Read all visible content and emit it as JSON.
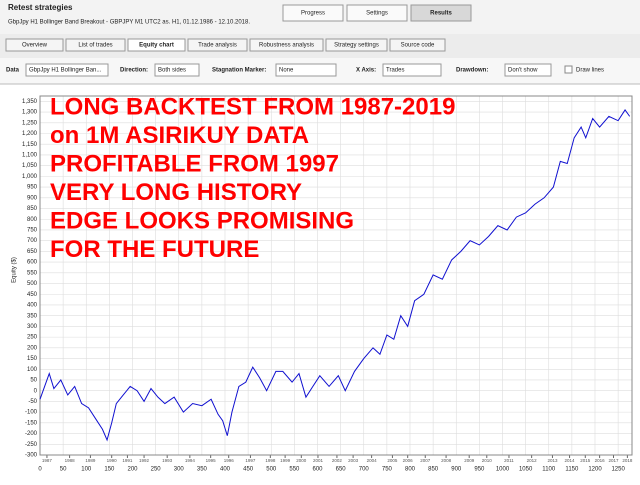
{
  "window": {
    "title": "Retest strategies",
    "subtitle": "GbpJpy H1 Bollinger Band Breakout - GBPJPY  M1  UTC2  as. H1, 01.12.1986 - 12.10.2018.",
    "buttons": [
      "Progress",
      "Settings",
      "Results"
    ],
    "tabs": [
      "Overview",
      "List of trades",
      "Equity chart",
      "Trade analysis",
      "Robustness analysis",
      "Strategy settings",
      "Source code"
    ],
    "controls": [
      {
        "label": "Data",
        "value": "GbpJpy H1 Bollinger Ban..."
      },
      {
        "label": "Direction:",
        "value": "Both sides"
      },
      {
        "label": "Stagnation Marker:",
        "value": "None"
      },
      {
        "label": "X Axis:",
        "value": "Trades"
      },
      {
        "label": "Drawdown:",
        "value": "Don't show"
      }
    ],
    "checkbox": "Draw lines"
  },
  "chart_data": {
    "type": "line",
    "ylabel": "Equity ($)",
    "color": "#1010d0",
    "annotations": [
      "LONG BACKTEST FROM 1987-2019",
      "on 1M ASIRIKUY DATA",
      "PROFITABLE FROM 1997",
      "VERY LONG HISTORY",
      "EDGE LOOKS PROMISING",
      "FOR THE FUTURE"
    ],
    "x": [
      0,
      10,
      20,
      30,
      45,
      60,
      75,
      90,
      105,
      120,
      135,
      145,
      155,
      165,
      180,
      195,
      210,
      225,
      240,
      255,
      270,
      290,
      310,
      330,
      350,
      370,
      385,
      395,
      405,
      415,
      430,
      445,
      460,
      475,
      490,
      510,
      525,
      545,
      560,
      575,
      590,
      605,
      625,
      645,
      660,
      680,
      700,
      720,
      735,
      750,
      765,
      780,
      795,
      810,
      830,
      850,
      870,
      890,
      910,
      930,
      950,
      970,
      990,
      1010,
      1030,
      1050,
      1070,
      1090,
      1110,
      1125,
      1140,
      1155,
      1170,
      1180,
      1195,
      1210,
      1230,
      1250,
      1265,
      1275
    ],
    "values": [
      -40,
      20,
      80,
      10,
      50,
      -20,
      20,
      -60,
      -80,
      -130,
      -180,
      -230,
      -150,
      -60,
      -20,
      20,
      0,
      -50,
      10,
      -30,
      -60,
      -30,
      -100,
      -60,
      -70,
      -40,
      -110,
      -140,
      -210,
      -100,
      20,
      40,
      110,
      60,
      0,
      90,
      90,
      40,
      80,
      -30,
      20,
      70,
      20,
      70,
      0,
      90,
      150,
      200,
      170,
      260,
      240,
      350,
      300,
      420,
      450,
      540,
      520,
      610,
      650,
      700,
      680,
      720,
      770,
      750,
      810,
      830,
      870,
      900,
      950,
      1070,
      1060,
      1180,
      1230,
      1180,
      1270,
      1230,
      1280,
      1260,
      1310,
      1280
    ],
    "xlim": [
      0,
      1280
    ],
    "xticks": [
      0,
      50,
      100,
      150,
      200,
      250,
      300,
      350,
      400,
      450,
      500,
      550,
      600,
      650,
      700,
      750,
      800,
      850,
      900,
      950,
      1000,
      1050,
      1100,
      1150,
      1200,
      1250
    ],
    "x2ticks": [
      {
        "value": 15,
        "label": "1987"
      },
      {
        "value": 64,
        "label": "1988"
      },
      {
        "value": 109,
        "label": "1989"
      },
      {
        "value": 155,
        "label": "1990"
      },
      {
        "value": 189,
        "label": "1991"
      },
      {
        "value": 225,
        "label": "1992"
      },
      {
        "value": 275,
        "label": "1993"
      },
      {
        "value": 324,
        "label": "1994"
      },
      {
        "value": 369,
        "label": "1995"
      },
      {
        "value": 408,
        "label": "1996"
      },
      {
        "value": 455,
        "label": "1997"
      },
      {
        "value": 498,
        "label": "1998"
      },
      {
        "value": 530,
        "label": "1999"
      },
      {
        "value": 565,
        "label": "2000"
      },
      {
        "value": 601,
        "label": "2001"
      },
      {
        "value": 642,
        "label": "2002"
      },
      {
        "value": 677,
        "label": "2003"
      },
      {
        "value": 717,
        "label": "2004"
      },
      {
        "value": 762,
        "label": "2005"
      },
      {
        "value": 795,
        "label": "2006"
      },
      {
        "value": 833,
        "label": "2007"
      },
      {
        "value": 878,
        "label": "2008"
      },
      {
        "value": 928,
        "label": "2009"
      },
      {
        "value": 966,
        "label": "2010"
      },
      {
        "value": 1014,
        "label": "2011"
      },
      {
        "value": 1063,
        "label": "2012"
      },
      {
        "value": 1108,
        "label": "2013"
      },
      {
        "value": 1145,
        "label": "2014"
      },
      {
        "value": 1179,
        "label": "2015"
      },
      {
        "value": 1210,
        "label": "2016"
      },
      {
        "value": 1240,
        "label": "2017"
      },
      {
        "value": 1270,
        "label": "2018"
      }
    ],
    "ylim": [
      -300,
      1375
    ],
    "yticks": [
      -300,
      -250,
      -200,
      -150,
      -100,
      -50,
      0,
      50,
      100,
      150,
      200,
      250,
      300,
      350,
      400,
      450,
      500,
      550,
      600,
      650,
      700,
      750,
      800,
      850,
      900,
      950,
      {
        "value": 1000,
        "label": "1,000"
      },
      {
        "value": 1050,
        "label": "1,050"
      },
      {
        "value": 1100,
        "label": "1,100"
      },
      {
        "value": 1150,
        "label": "1,150"
      },
      {
        "value": 1200,
        "label": "1,200"
      },
      {
        "value": 1250,
        "label": "1,250"
      },
      {
        "value": 1300,
        "label": "1,300"
      },
      {
        "value": 1350,
        "label": "1,350"
      }
    ],
    "grid": true
  }
}
